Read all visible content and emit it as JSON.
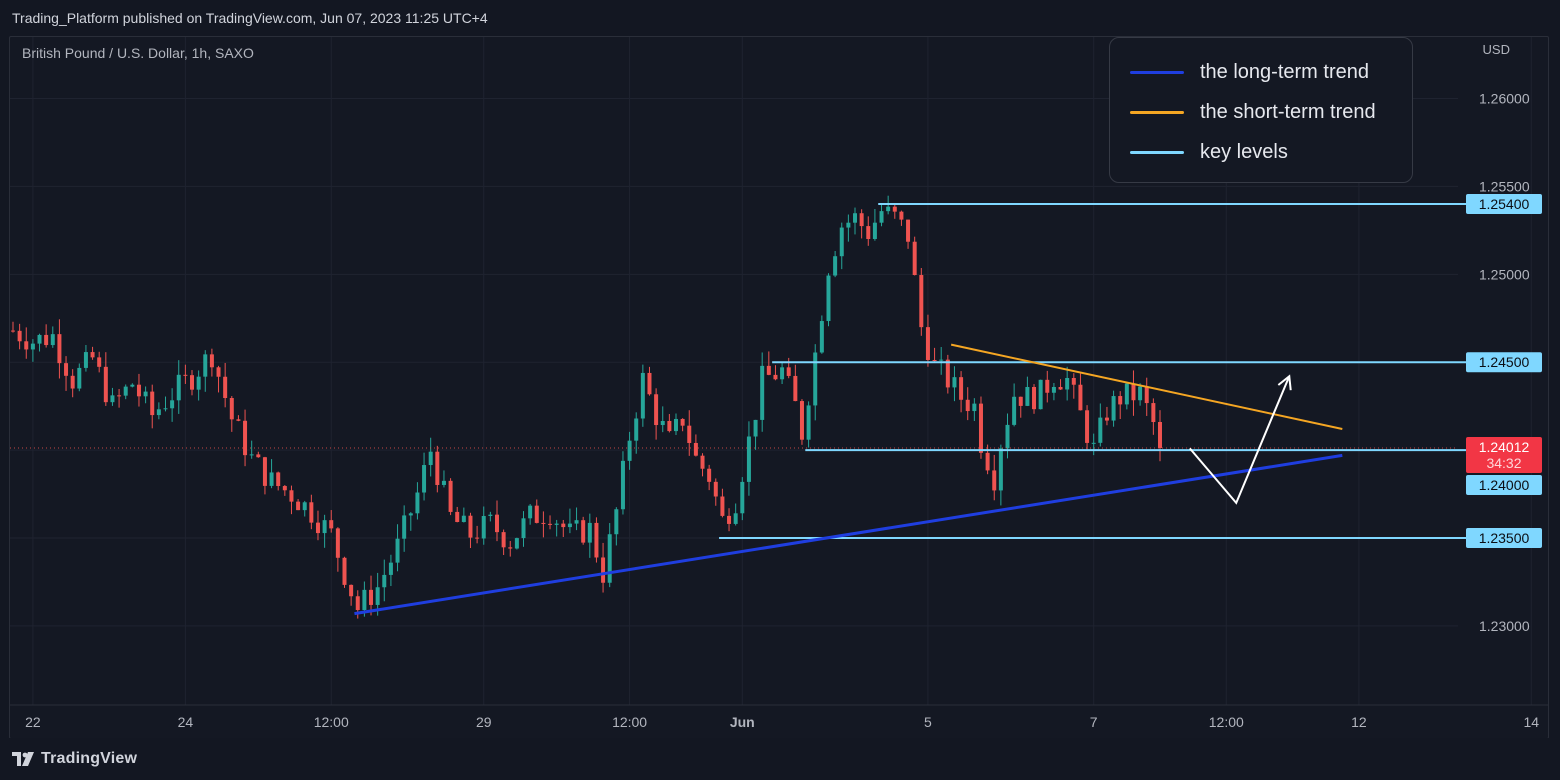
{
  "header": {
    "published_text": "Trading_Platform published on TradingView.com, Jun 07, 2023 11:25 UTC+4"
  },
  "chart_header": {
    "symbol_text": "British Pound / U.S. Dollar, 1h, SAXO",
    "currency": "USD"
  },
  "legend": {
    "items": [
      {
        "label": "the long-term trend",
        "color": "#1f3ee0"
      },
      {
        "label": "the short-term trend",
        "color": "#f5a623"
      },
      {
        "label": "key levels",
        "color": "#7fd7ff"
      }
    ]
  },
  "footer": {
    "brand": "TradingView"
  },
  "chart_data": {
    "type": "candlestick",
    "symbol": "British Pound / U.S. Dollar",
    "interval": "1h",
    "source": "SAXO",
    "ylim": [
      1.2255,
      1.2635
    ],
    "y_ticks": [
      "1.26000",
      "1.25500",
      "1.25000",
      "1.23000"
    ],
    "x_ticks": [
      {
        "label": "22",
        "idx": 3
      },
      {
        "label": "24",
        "idx": 26
      },
      {
        "label": "12:00",
        "idx": 48
      },
      {
        "label": "29",
        "idx": 71
      },
      {
        "label": "12:00",
        "idx": 93
      },
      {
        "label": "Jun",
        "idx": 110,
        "bold": true
      },
      {
        "label": "5",
        "idx": 138
      },
      {
        "label": "7",
        "idx": 163
      },
      {
        "label": "12:00",
        "idx": 183
      },
      {
        "label": "12",
        "idx": 203
      },
      {
        "label": "14",
        "idx": 229
      }
    ],
    "close_path": [
      [
        0,
        1.2468
      ],
      [
        3,
        1.2462
      ],
      [
        6,
        1.2465
      ],
      [
        9,
        1.244
      ],
      [
        12,
        1.2452
      ],
      [
        15,
        1.2425
      ],
      [
        18,
        1.2438
      ],
      [
        21,
        1.242
      ],
      [
        24,
        1.2432
      ],
      [
        27,
        1.2442
      ],
      [
        30,
        1.2455
      ],
      [
        33,
        1.2418
      ],
      [
        36,
        1.2395
      ],
      [
        39,
        1.2382
      ],
      [
        42,
        1.2375
      ],
      [
        45,
        1.2365
      ],
      [
        48,
        1.2352
      ],
      [
        50,
        1.233
      ],
      [
        52,
        1.231
      ],
      [
        55,
        1.2322
      ],
      [
        58,
        1.2345
      ],
      [
        61,
        1.2375
      ],
      [
        63,
        1.24
      ],
      [
        66,
        1.2362
      ],
      [
        69,
        1.2352
      ],
      [
        72,
        1.2358
      ],
      [
        75,
        1.2348
      ],
      [
        78,
        1.2362
      ],
      [
        81,
        1.2365
      ],
      [
        84,
        1.2352
      ],
      [
        87,
        1.2355
      ],
      [
        89,
        1.233
      ],
      [
        91,
        1.2365
      ],
      [
        93,
        1.2408
      ],
      [
        95,
        1.244
      ],
      [
        97,
        1.242
      ],
      [
        99,
        1.2405
      ],
      [
        101,
        1.2418
      ],
      [
        103,
        1.2395
      ],
      [
        105,
        1.2385
      ],
      [
        107,
        1.236
      ],
      [
        109,
        1.2372
      ],
      [
        111,
        1.2405
      ],
      [
        113,
        1.244
      ],
      [
        116,
        1.2445
      ],
      [
        118,
        1.2425
      ],
      [
        119,
        1.241
      ],
      [
        121,
        1.2455
      ],
      [
        123,
        1.2505
      ],
      [
        125,
        1.2528
      ],
      [
        127,
        1.2532
      ],
      [
        129,
        1.2524
      ],
      [
        131,
        1.2536
      ],
      [
        133,
        1.2532
      ],
      [
        135,
        1.2522
      ],
      [
        137,
        1.247
      ],
      [
        139,
        1.2448
      ],
      [
        141,
        1.244
      ],
      [
        143,
        1.243
      ],
      [
        145,
        1.2425
      ],
      [
        146,
        1.2405
      ],
      [
        148,
        1.2385
      ],
      [
        149,
        1.2405
      ],
      [
        151,
        1.2432
      ],
      [
        153,
        1.243
      ],
      [
        155,
        1.2432
      ],
      [
        157,
        1.2442
      ],
      [
        159,
        1.244
      ],
      [
        161,
        1.242
      ],
      [
        163,
        1.24
      ],
      [
        165,
        1.2422
      ],
      [
        167,
        1.243
      ],
      [
        170,
        1.2432
      ],
      [
        172,
        1.2415
      ],
      [
        173,
        1.2401
      ]
    ],
    "candle_count": 174,
    "long_term_trend": {
      "from": {
        "idx": 51.5,
        "value": 1.2307
      },
      "to": {
        "idx": 200.5,
        "value": 1.2397
      }
    },
    "short_term_trend": {
      "from": {
        "idx": 141.5,
        "value": 1.246
      },
      "to": {
        "idx": 200.5,
        "value": 1.2412
      }
    },
    "projection": [
      {
        "idx": 177.5,
        "value": 1.2401
      },
      {
        "idx": 184.5,
        "value": 1.237
      },
      {
        "idx": 192.5,
        "value": 1.2442
      }
    ],
    "key_levels": [
      {
        "value": 1.254,
        "label": "1.25400",
        "from_idx": 130.5
      },
      {
        "value": 1.245,
        "label": "1.24500",
        "from_idx": 114.5
      },
      {
        "value": 1.24,
        "label": "1.24000",
        "from_idx": 119.5
      },
      {
        "value": 1.235,
        "label": "1.23500",
        "from_idx": 106.5
      }
    ],
    "current_price": {
      "value": 1.24012,
      "label": "1.24012",
      "countdown": "34:32"
    }
  }
}
